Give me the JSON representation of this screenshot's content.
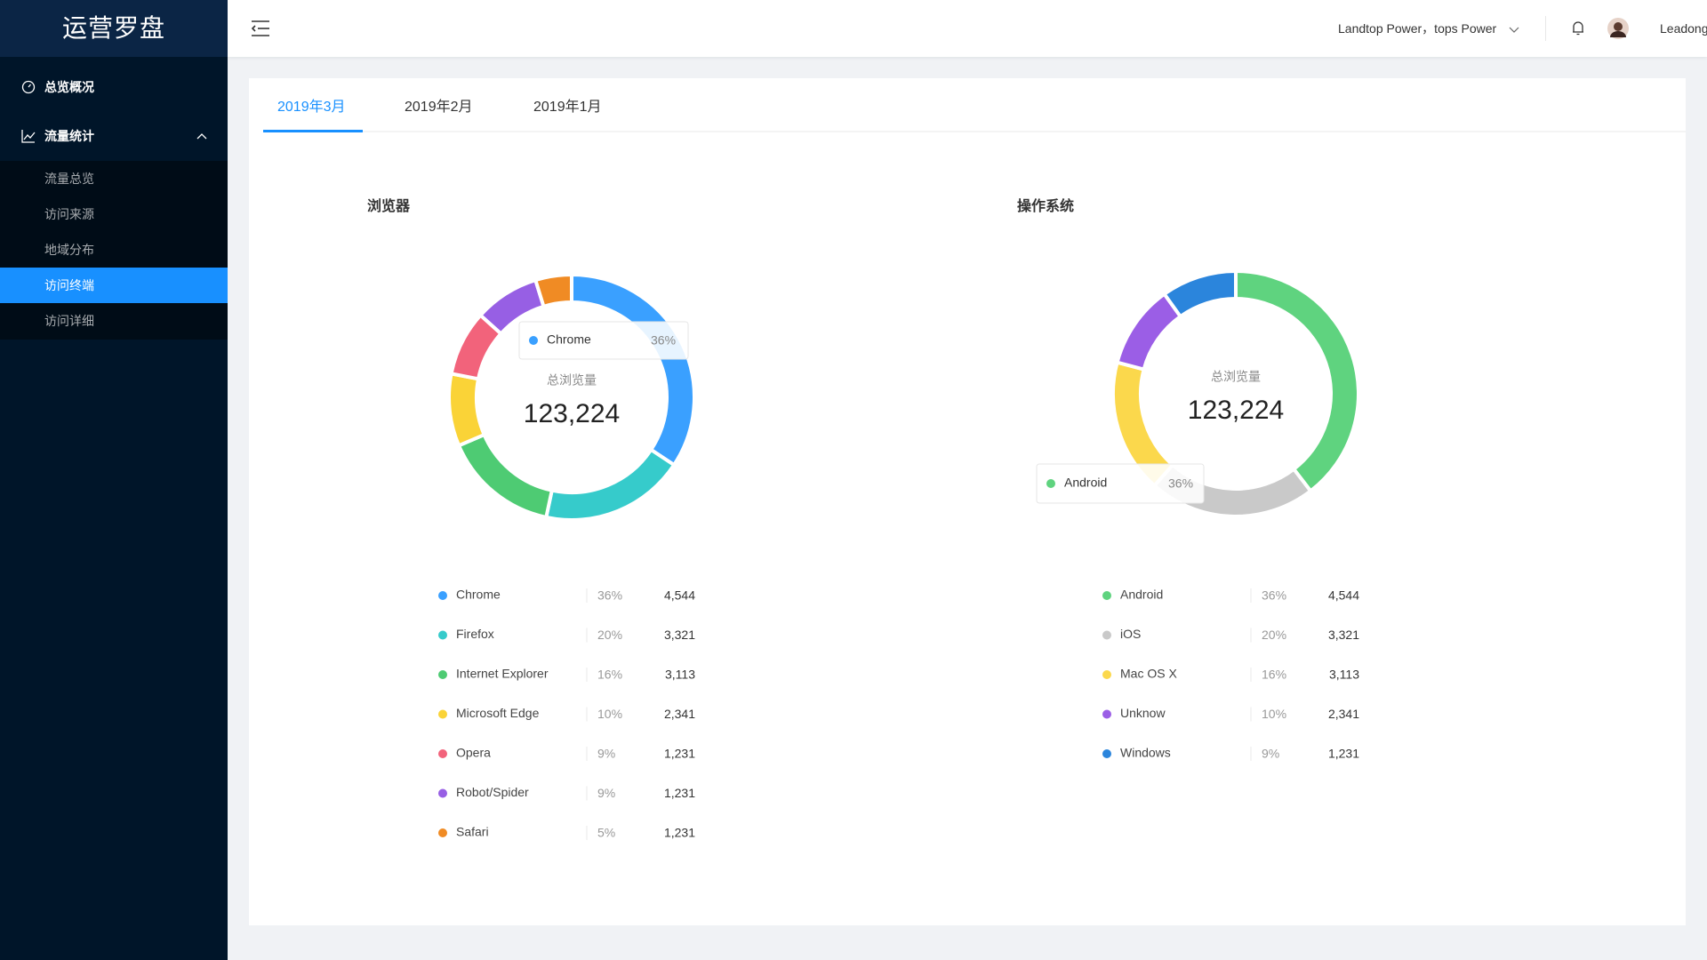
{
  "sidebar": {
    "logo": "运营罗盘",
    "menu": [
      "总览概况",
      "流量统计"
    ],
    "submenu": [
      "流量总览",
      "访问来源",
      "地域分布",
      "访问终端",
      "访问详细"
    ]
  },
  "header": {
    "account": "Landtop Power，tops Power",
    "user": "Leadong"
  },
  "tabs": [
    "2019年3月",
    "2019年2月",
    "2019年1月"
  ],
  "chart_data": [
    {
      "type": "pie",
      "title": "浏览器",
      "center_label": "总浏览量",
      "total": "123,224",
      "categories": [
        "Chrome",
        "Firefox",
        "Internet Explorer",
        "Microsoft Edge",
        "Opera",
        "Robot/Spider",
        "Safari"
      ],
      "values": [
        36,
        20,
        16,
        10,
        9,
        9,
        5
      ],
      "value_labels": [
        "36%",
        "20%",
        "16%",
        "10%",
        "9%",
        "9%",
        "5%"
      ],
      "counts": [
        "4,544",
        "3,321",
        "3,113",
        "2,341",
        "1,231",
        "1,231",
        "1,231"
      ],
      "colors": [
        "#3aa0ff",
        "#36cbcb",
        "#4ecb73",
        "#fad337",
        "#f2637b",
        "#975fe4",
        "#f08b24"
      ]
    },
    {
      "type": "pie",
      "title": "操作系统",
      "center_label": "总浏览量",
      "total": "123,224",
      "categories": [
        "Android",
        "iOS",
        "Mac OS X",
        "Unknow",
        "Windows"
      ],
      "values": [
        36,
        20,
        16,
        10,
        9
      ],
      "value_labels": [
        "36%",
        "20%",
        "16%",
        "10%",
        "9%"
      ],
      "counts": [
        "4,544",
        "3,321",
        "3,113",
        "2,341",
        "1,231"
      ],
      "colors": [
        "#5fd37f",
        "#c9c9c9",
        "#fbd84c",
        "#9b5ee6",
        "#2b85dc"
      ]
    }
  ]
}
